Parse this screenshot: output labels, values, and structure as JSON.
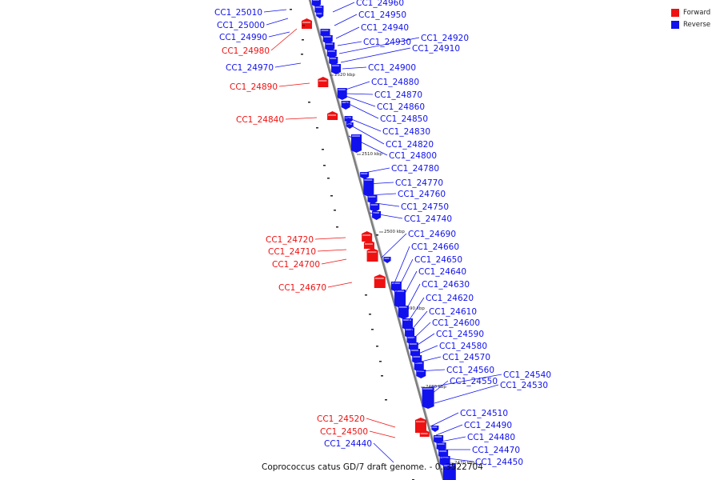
{
  "legend": [
    {
      "label": "Forward",
      "color": "#ee1111"
    },
    {
      "label": "Reverse",
      "color": "#1111ee"
    }
  ],
  "colors": {
    "forward": "#ee1111",
    "reverse": "#1111ee",
    "backbone": "#888888"
  },
  "footer": "Coprococcus catus GD/7 draft genome. - 0..3522704",
  "scale_ticks": [
    "2520 kbp",
    "2510 kbp",
    "2500 kbp",
    "2490 kbp",
    "2480 kbp",
    "2470 kbp"
  ],
  "genes": {
    "forward": [
      "CC1_24980",
      "CC1_24890",
      "CC1_24840",
      "CC1_24720",
      "CC1_24710",
      "CC1_24700",
      "CC1_24670",
      "CC1_24520",
      "CC1_24500"
    ],
    "reverse_left": [
      "CC1_25010",
      "CC1_25000",
      "CC1_24990",
      "CC1_24970",
      "CC1_24440"
    ],
    "reverse_right": [
      "CC1_24960",
      "CC1_24950",
      "CC1_24940",
      "CC1_24930",
      "CC1_24920",
      "CC1_24910",
      "CC1_24900",
      "CC1_24880",
      "CC1_24870",
      "CC1_24860",
      "CC1_24850",
      "CC1_24830",
      "CC1_24820",
      "CC1_24800",
      "CC1_24780",
      "CC1_24770",
      "CC1_24760",
      "CC1_24750",
      "CC1_24740",
      "CC1_24690",
      "CC1_24660",
      "CC1_24650",
      "CC1_24640",
      "CC1_24630",
      "CC1_24620",
      "CC1_24610",
      "CC1_24600",
      "CC1_24590",
      "CC1_24580",
      "CC1_24570",
      "CC1_24560",
      "CC1_24540",
      "CC1_24550",
      "CC1_24530",
      "CC1_24510",
      "CC1_24490",
      "CC1_24480",
      "CC1_24470",
      "CC1_24450"
    ]
  }
}
